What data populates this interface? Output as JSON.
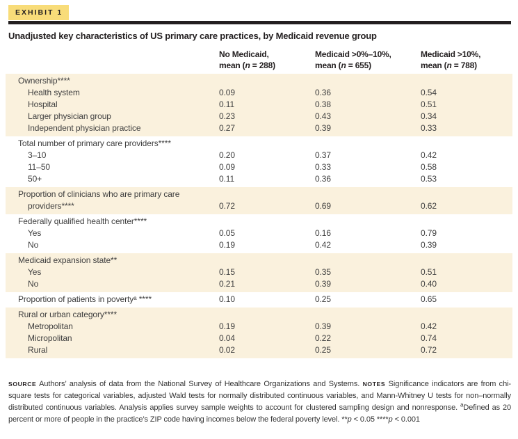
{
  "header": {
    "badge": "EXHIBIT 1",
    "title": "Unadjusted key characteristics of US primary care practices, by Medicaid revenue group"
  },
  "columns": [
    {
      "line1": "No Medicaid,",
      "mean_pre": "mean (",
      "n": "n",
      "mean_post": " = 288)"
    },
    {
      "line1": "Medicaid >0%–10%,",
      "mean_pre": "mean (",
      "n": "n",
      "mean_post": " = 655)"
    },
    {
      "line1": "Medicaid >10%,",
      "mean_pre": "mean (",
      "n": "n",
      "mean_post": " = 788)"
    }
  ],
  "table": {
    "blocks": [
      {
        "shaded": true,
        "rows": [
          {
            "label": "Ownership****",
            "indent": 0
          },
          {
            "label": "Health system",
            "indent": 1,
            "values": [
              "0.09",
              "0.36",
              "0.54"
            ]
          },
          {
            "label": "Hospital",
            "indent": 1,
            "values": [
              "0.11",
              "0.38",
              "0.51"
            ]
          },
          {
            "label": "Larger physician group",
            "indent": 1,
            "values": [
              "0.23",
              "0.43",
              "0.34"
            ]
          },
          {
            "label": "Independent physician practice",
            "indent": 1,
            "values": [
              "0.27",
              "0.39",
              "0.33"
            ]
          }
        ]
      },
      {
        "shaded": false,
        "rows": [
          {
            "label": "Total number of primary care providers****",
            "indent": 0
          },
          {
            "label": "3–10",
            "indent": 1,
            "values": [
              "0.20",
              "0.37",
              "0.42"
            ]
          },
          {
            "label": "11–50",
            "indent": 1,
            "values": [
              "0.09",
              "0.33",
              "0.58"
            ]
          },
          {
            "label": "50+",
            "indent": 1,
            "values": [
              "0.11",
              "0.36",
              "0.53"
            ]
          }
        ]
      },
      {
        "shaded": true,
        "rows": [
          {
            "label": "Proportion of clinicians who are primary care",
            "label2": "providers****",
            "indent": 0,
            "values": [
              "0.72",
              "0.69",
              "0.62"
            ]
          }
        ]
      },
      {
        "shaded": false,
        "rows": [
          {
            "label": "Federally qualified health center****",
            "indent": 0
          },
          {
            "label": "Yes",
            "indent": 1,
            "values": [
              "0.05",
              "0.16",
              "0.79"
            ]
          },
          {
            "label": "No",
            "indent": 1,
            "values": [
              "0.19",
              "0.42",
              "0.39"
            ]
          }
        ]
      },
      {
        "shaded": true,
        "rows": [
          {
            "label": "Medicaid expansion state**",
            "indent": 0
          },
          {
            "label": "Yes",
            "indent": 1,
            "values": [
              "0.15",
              "0.35",
              "0.51"
            ]
          },
          {
            "label": "No",
            "indent": 1,
            "values": [
              "0.21",
              "0.39",
              "0.40"
            ]
          }
        ]
      },
      {
        "shaded": false,
        "rows": [
          {
            "label": "Proportion of patients in povertyᵃ ****",
            "indent": 0,
            "values": [
              "0.10",
              "0.25",
              "0.65"
            ]
          }
        ]
      },
      {
        "shaded": true,
        "rows": [
          {
            "label": "Rural or urban category****",
            "indent": 0
          },
          {
            "label": "Metropolitan",
            "indent": 1,
            "values": [
              "0.19",
              "0.39",
              "0.42"
            ]
          },
          {
            "label": "Micropolitan",
            "indent": 1,
            "values": [
              "0.04",
              "0.22",
              "0.74"
            ]
          },
          {
            "label": "Rural",
            "indent": 1,
            "values": [
              "0.02",
              "0.25",
              "0.72"
            ]
          }
        ]
      }
    ]
  },
  "footer": {
    "runs": [
      {
        "t": "SOURCE",
        "s": "label"
      },
      {
        "t": " Authors’ analysis of data from the National Survey of Healthcare Organizations and Systems. ",
        "s": "text"
      },
      {
        "t": "NOTES",
        "s": "label"
      },
      {
        "t": " Significance indicators are from chi-square tests for categorical variables, adjusted Wald tests for normally distributed continuous variables, and Mann-Whitney U tests for non–normally distributed continuous variables. Analysis applies survey sample weights to account for clustered sampling design and nonresponse. ",
        "s": "text"
      },
      {
        "t": "a",
        "s": "sup"
      },
      {
        "t": "Defined as 20 percent or more of people in the practice’s ZIP code having incomes below the federal poverty level. **",
        "s": "text"
      },
      {
        "t": "p",
        "s": "italic"
      },
      {
        "t": " < 0.05 ****",
        "s": "text"
      },
      {
        "t": "p",
        "s": "italic"
      },
      {
        "t": " < 0.001",
        "s": "text"
      }
    ]
  },
  "colors": {
    "badge_yellow": "#f8dc79",
    "shaded_row_cream": "#faf1dd",
    "rule_black": "#231f20"
  }
}
